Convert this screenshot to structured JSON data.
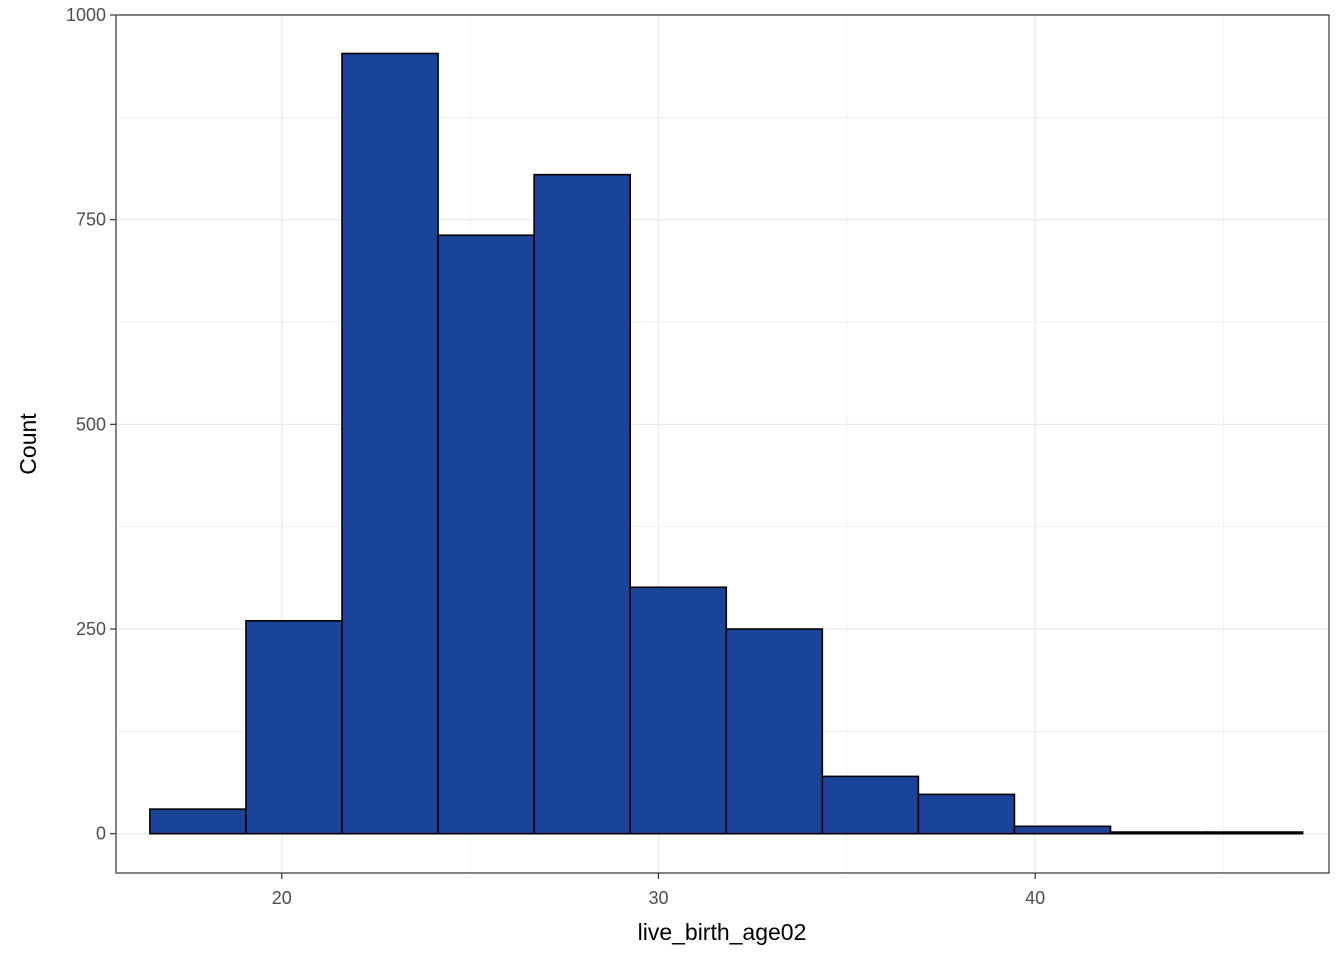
{
  "chart_data": {
    "type": "bar",
    "subtype": "histogram",
    "title": "",
    "xlabel": "live_birth_age02",
    "ylabel": "Count",
    "bin_edges": [
      16.5,
      19.05,
      21.6,
      24.15,
      26.7,
      29.25,
      31.8,
      34.35,
      36.9,
      39.45,
      42.0,
      44.55,
      47.1
    ],
    "values": [
      30,
      260,
      953,
      731,
      805,
      301,
      250,
      70,
      48,
      9,
      2,
      2
    ],
    "xlim": [
      15.6,
      47.8
    ],
    "ylim": [
      -48,
      1000
    ],
    "x_ticks": [
      20,
      30,
      40
    ],
    "x_tick_labels": [
      "20",
      "30",
      "40"
    ],
    "y_ticks": [
      0,
      250,
      500,
      750,
      1000
    ],
    "y_tick_labels": [
      "0",
      "250",
      "500",
      "750",
      "1000"
    ],
    "grid": true,
    "bar_fill": "#1a4497",
    "bar_stroke": "#000000",
    "panel_border": "#333333",
    "grid_color": "#ebebeb"
  }
}
